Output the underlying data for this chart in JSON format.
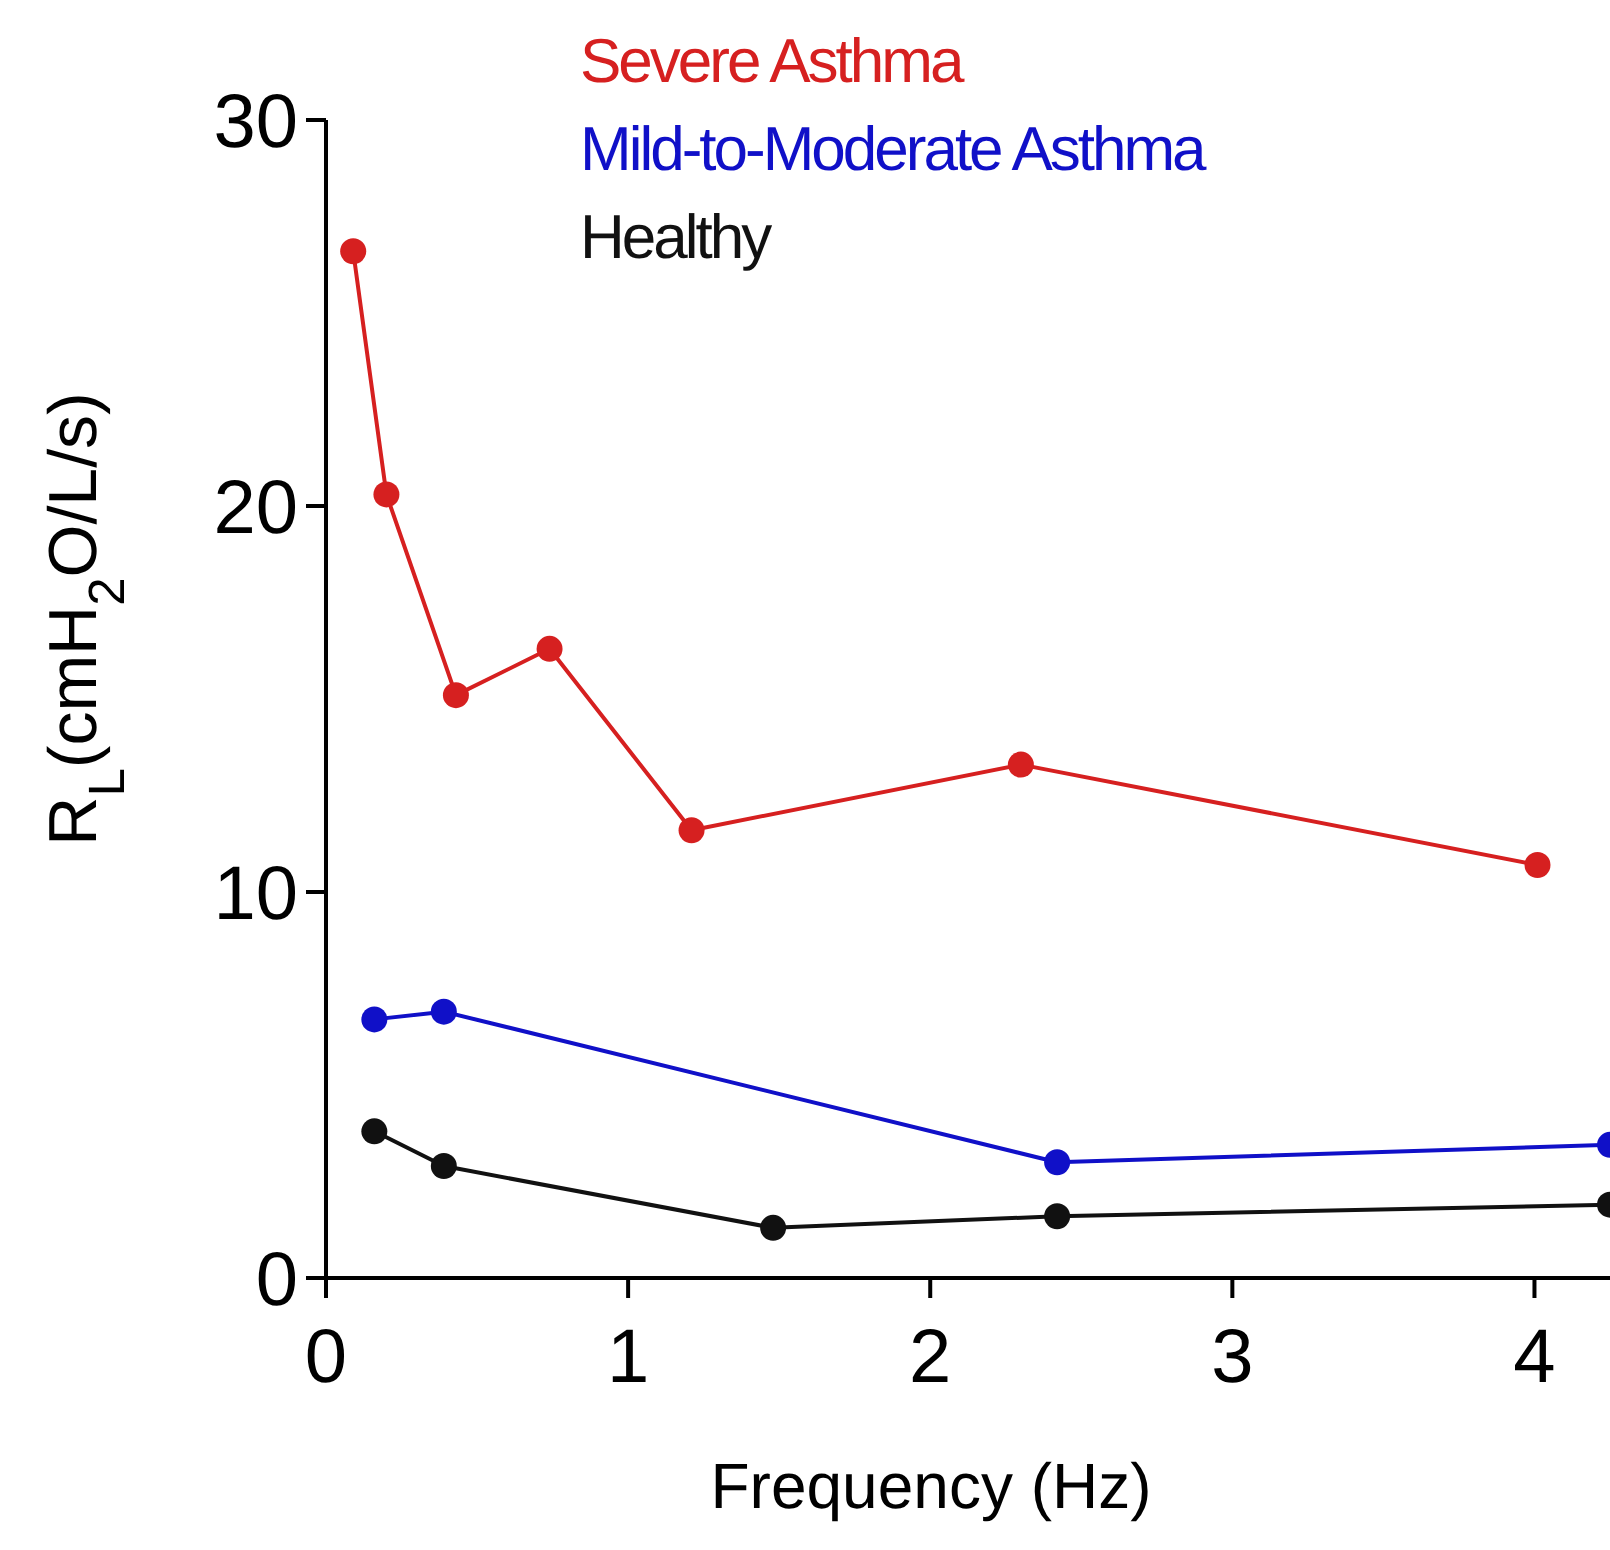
{
  "chart_data": {
    "type": "line",
    "xlabel": "Frequency (Hz)",
    "ylabel": "R$_{L}$(cmH$_{2}$O/L/s)",
    "xlim": [
      0,
      4.25
    ],
    "xticks": [
      0,
      1,
      2,
      3,
      4
    ],
    "ylim": [
      0,
      30
    ],
    "yticks": [
      0,
      10,
      20,
      30
    ],
    "legend": "top",
    "marker": "circle",
    "line_style": "solid",
    "grid": false,
    "series": [
      {
        "name": "Severe Asthma",
        "color": "#d62020",
        "x": [
          0.09,
          0.2,
          0.43,
          0.74,
          1.21,
          2.3,
          4.01
        ],
        "values": [
          26.6,
          20.3,
          15.1,
          16.3,
          11.6,
          13.3,
          10.7
        ]
      },
      {
        "name": "Mild-to-Moderate Asthma",
        "color": "#1010c8",
        "x": [
          0.16,
          0.39,
          2.42,
          4.25
        ],
        "values": [
          6.7,
          6.9,
          3.0,
          3.45
        ]
      },
      {
        "name": "Healthy",
        "color": "#111111",
        "x": [
          0.16,
          0.39,
          1.48,
          2.42,
          4.25
        ],
        "values": [
          3.8,
          2.9,
          1.3,
          1.6,
          1.9
        ]
      }
    ]
  }
}
